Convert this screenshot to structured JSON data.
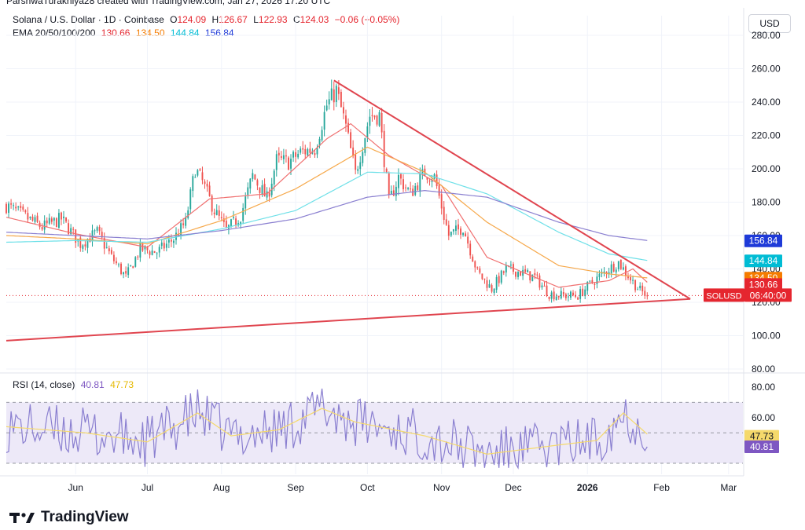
{
  "header": {
    "credit": "ParshwaTurakhiya28 created with TradingView.com, Jan 27, 2026 17:20 UTC",
    "symbol_label": "Solana / U.S. Dollar · 1D · Coinbase",
    "ohlc": {
      "o_label": "O",
      "o": "124.09",
      "h_label": "H",
      "h": "126.67",
      "l_label": "L",
      "l": "122.93",
      "c_label": "C",
      "c": "124.03",
      "change": "−0.06 (−0.05%)"
    },
    "ema_label": "EMA 20/50/100/200",
    "ema_values": [
      "130.66",
      "134.50",
      "144.84",
      "156.84"
    ],
    "currency": "USD"
  },
  "colors": {
    "up": "#26a69a",
    "down": "#ef5350",
    "ema20": "#f07070",
    "ema50": "#f6a84a",
    "ema100": "#6ee0e8",
    "ema200": "#8a7fd0",
    "trendline": "#e0454f",
    "rsi_line": "#8a7fd0",
    "rsi_ma": "#f5d96b",
    "rsi_band": "#ede9f8",
    "grid": "#f0f3fa",
    "axis_text": "#131722"
  },
  "price_axis": {
    "ticks": [
      "280.00",
      "260.00",
      "240.00",
      "220.00",
      "200.00",
      "180.00",
      "160.00",
      "140.00",
      "120.00",
      "100.00",
      "80.00"
    ]
  },
  "price_badges": [
    {
      "label": "156.84",
      "color": "#1e3ad8"
    },
    {
      "label": "144.84",
      "color": "#00bcd4"
    },
    {
      "label": "134.50",
      "color": "#f57c00"
    },
    {
      "label": "130.66",
      "color": "#e5262f"
    },
    {
      "symbol": "SOLUSD",
      "label": "06:40:00",
      "color": "#e5262f"
    }
  ],
  "rsi": {
    "label": "RSI (14, close)",
    "values": [
      "40.81",
      "47.73"
    ],
    "axis_ticks": [
      "80.00",
      "60.00"
    ],
    "badges": [
      {
        "label": "47.73",
        "color": "#f5d96b"
      },
      {
        "label": "40.81",
        "color": "#7e57c2"
      }
    ]
  },
  "time_axis": {
    "labels": [
      "Jun",
      "Jul",
      "Aug",
      "Sep",
      "Oct",
      "Nov",
      "Dec",
      "2026",
      "Feb",
      "Mar"
    ]
  },
  "brand": {
    "name": "TradingView"
  },
  "chart_data": {
    "type": "candlestick",
    "title": "Solana / U.S. Dollar · 1D · Coinbase",
    "ylim": [
      80,
      290
    ],
    "x_range": [
      "2025-05-03",
      "2026-03-07"
    ],
    "ohlc_last": {
      "open": 124.09,
      "high": 126.67,
      "low": 122.93,
      "close": 124.03
    },
    "close_anchors": [
      [
        "2025-05-03",
        178
      ],
      [
        "2025-05-10",
        172
      ],
      [
        "2025-05-18",
        165
      ],
      [
        "2025-05-26",
        170
      ],
      [
        "2025-06-03",
        155
      ],
      [
        "2025-06-10",
        162
      ],
      [
        "2025-06-16",
        147
      ],
      [
        "2025-06-22",
        135
      ],
      [
        "2025-06-28",
        152
      ],
      [
        "2025-07-05",
        150
      ],
      [
        "2025-07-12",
        158
      ],
      [
        "2025-07-17",
        168
      ],
      [
        "2025-07-21",
        200
      ],
      [
        "2025-07-24",
        192
      ],
      [
        "2025-07-29",
        175
      ],
      [
        "2025-08-03",
        163
      ],
      [
        "2025-08-09",
        172
      ],
      [
        "2025-08-14",
        196
      ],
      [
        "2025-08-20",
        182
      ],
      [
        "2025-08-24",
        205
      ],
      [
        "2025-08-29",
        204
      ],
      [
        "2025-09-03",
        210
      ],
      [
        "2025-09-09",
        212
      ],
      [
        "2025-09-14",
        238
      ],
      [
        "2025-09-18",
        247
      ],
      [
        "2025-09-22",
        225
      ],
      [
        "2025-09-26",
        197
      ],
      [
        "2025-10-02",
        232
      ],
      [
        "2025-10-06",
        232
      ],
      [
        "2025-10-10",
        180
      ],
      [
        "2025-10-14",
        195
      ],
      [
        "2025-10-19",
        185
      ],
      [
        "2025-10-25",
        198
      ],
      [
        "2025-10-29",
        195
      ],
      [
        "2025-11-04",
        160
      ],
      [
        "2025-11-10",
        165
      ],
      [
        "2025-11-16",
        138
      ],
      [
        "2025-11-22",
        128
      ],
      [
        "2025-11-28",
        140
      ],
      [
        "2025-12-04",
        138
      ],
      [
        "2025-12-10",
        135
      ],
      [
        "2025-12-16",
        125
      ],
      [
        "2025-12-22",
        124
      ],
      [
        "2025-12-28",
        124
      ],
      [
        "2026-01-03",
        132
      ],
      [
        "2026-01-09",
        139
      ],
      [
        "2026-01-14",
        144
      ],
      [
        "2026-01-19",
        134
      ],
      [
        "2026-01-23",
        127
      ],
      [
        "2026-01-26",
        124
      ]
    ],
    "ema_anchors": {
      "EMA20": [
        [
          "2025-05-03",
          171
        ],
        [
          "2025-06-01",
          161
        ],
        [
          "2025-07-01",
          153
        ],
        [
          "2025-07-27",
          182
        ],
        [
          "2025-08-20",
          185
        ],
        [
          "2025-09-14",
          218
        ],
        [
          "2025-09-24",
          227
        ],
        [
          "2025-10-10",
          208
        ],
        [
          "2025-11-01",
          190
        ],
        [
          "2025-11-20",
          147
        ],
        [
          "2025-12-20",
          129
        ],
        [
          "2026-01-10",
          133
        ],
        [
          "2026-01-20",
          140
        ],
        [
          "2026-01-27",
          130.66
        ]
      ],
      "EMA50": [
        [
          "2025-05-03",
          160
        ],
        [
          "2025-06-01",
          158
        ],
        [
          "2025-07-01",
          155
        ],
        [
          "2025-08-01",
          169
        ],
        [
          "2025-09-01",
          188
        ],
        [
          "2025-10-01",
          213
        ],
        [
          "2025-10-25",
          198
        ],
        [
          "2025-11-20",
          168
        ],
        [
          "2025-12-20",
          142
        ],
        [
          "2026-01-10",
          137
        ],
        [
          "2026-01-27",
          134.5
        ]
      ],
      "EMA100": [
        [
          "2025-05-03",
          156
        ],
        [
          "2025-06-01",
          157
        ],
        [
          "2025-07-01",
          156
        ],
        [
          "2025-08-01",
          164
        ],
        [
          "2025-09-01",
          175
        ],
        [
          "2025-10-01",
          198
        ],
        [
          "2025-10-25",
          197
        ],
        [
          "2025-11-20",
          185
        ],
        [
          "2025-12-20",
          162
        ],
        [
          "2026-01-10",
          149
        ],
        [
          "2026-01-27",
          144.84
        ]
      ],
      "EMA200": [
        [
          "2025-05-03",
          162
        ],
        [
          "2025-06-01",
          160
        ],
        [
          "2025-07-01",
          158
        ],
        [
          "2025-08-01",
          163
        ],
        [
          "2025-09-01",
          170
        ],
        [
          "2025-10-01",
          183
        ],
        [
          "2025-10-25",
          187
        ],
        [
          "2025-11-20",
          183
        ],
        [
          "2025-12-20",
          168
        ],
        [
          "2026-01-10",
          160
        ],
        [
          "2026-01-27",
          156.84
        ]
      ]
    },
    "trendlines": [
      {
        "name": "resistance",
        "from": [
          "2025-09-17",
          253
        ],
        "to": [
          "2026-02-13",
          122
        ]
      },
      {
        "name": "support",
        "from": [
          "2025-05-03",
          97
        ],
        "to": [
          "2026-02-13",
          122
        ]
      }
    ],
    "rsi": {
      "ylim": [
        20,
        100
      ],
      "band": [
        30,
        70
      ],
      "ma_anchors": [
        [
          "2025-05-03",
          54
        ],
        [
          "2025-06-05",
          50
        ],
        [
          "2025-07-01",
          44
        ],
        [
          "2025-07-22",
          63
        ],
        [
          "2025-08-05",
          48
        ],
        [
          "2025-08-25",
          52
        ],
        [
          "2025-09-12",
          66
        ],
        [
          "2025-09-26",
          57
        ],
        [
          "2025-10-25",
          48
        ],
        [
          "2025-11-20",
          36
        ],
        [
          "2025-12-20",
          42
        ],
        [
          "2026-01-05",
          45
        ],
        [
          "2026-01-16",
          63
        ],
        [
          "2026-01-27",
          47.73
        ]
      ]
    }
  }
}
